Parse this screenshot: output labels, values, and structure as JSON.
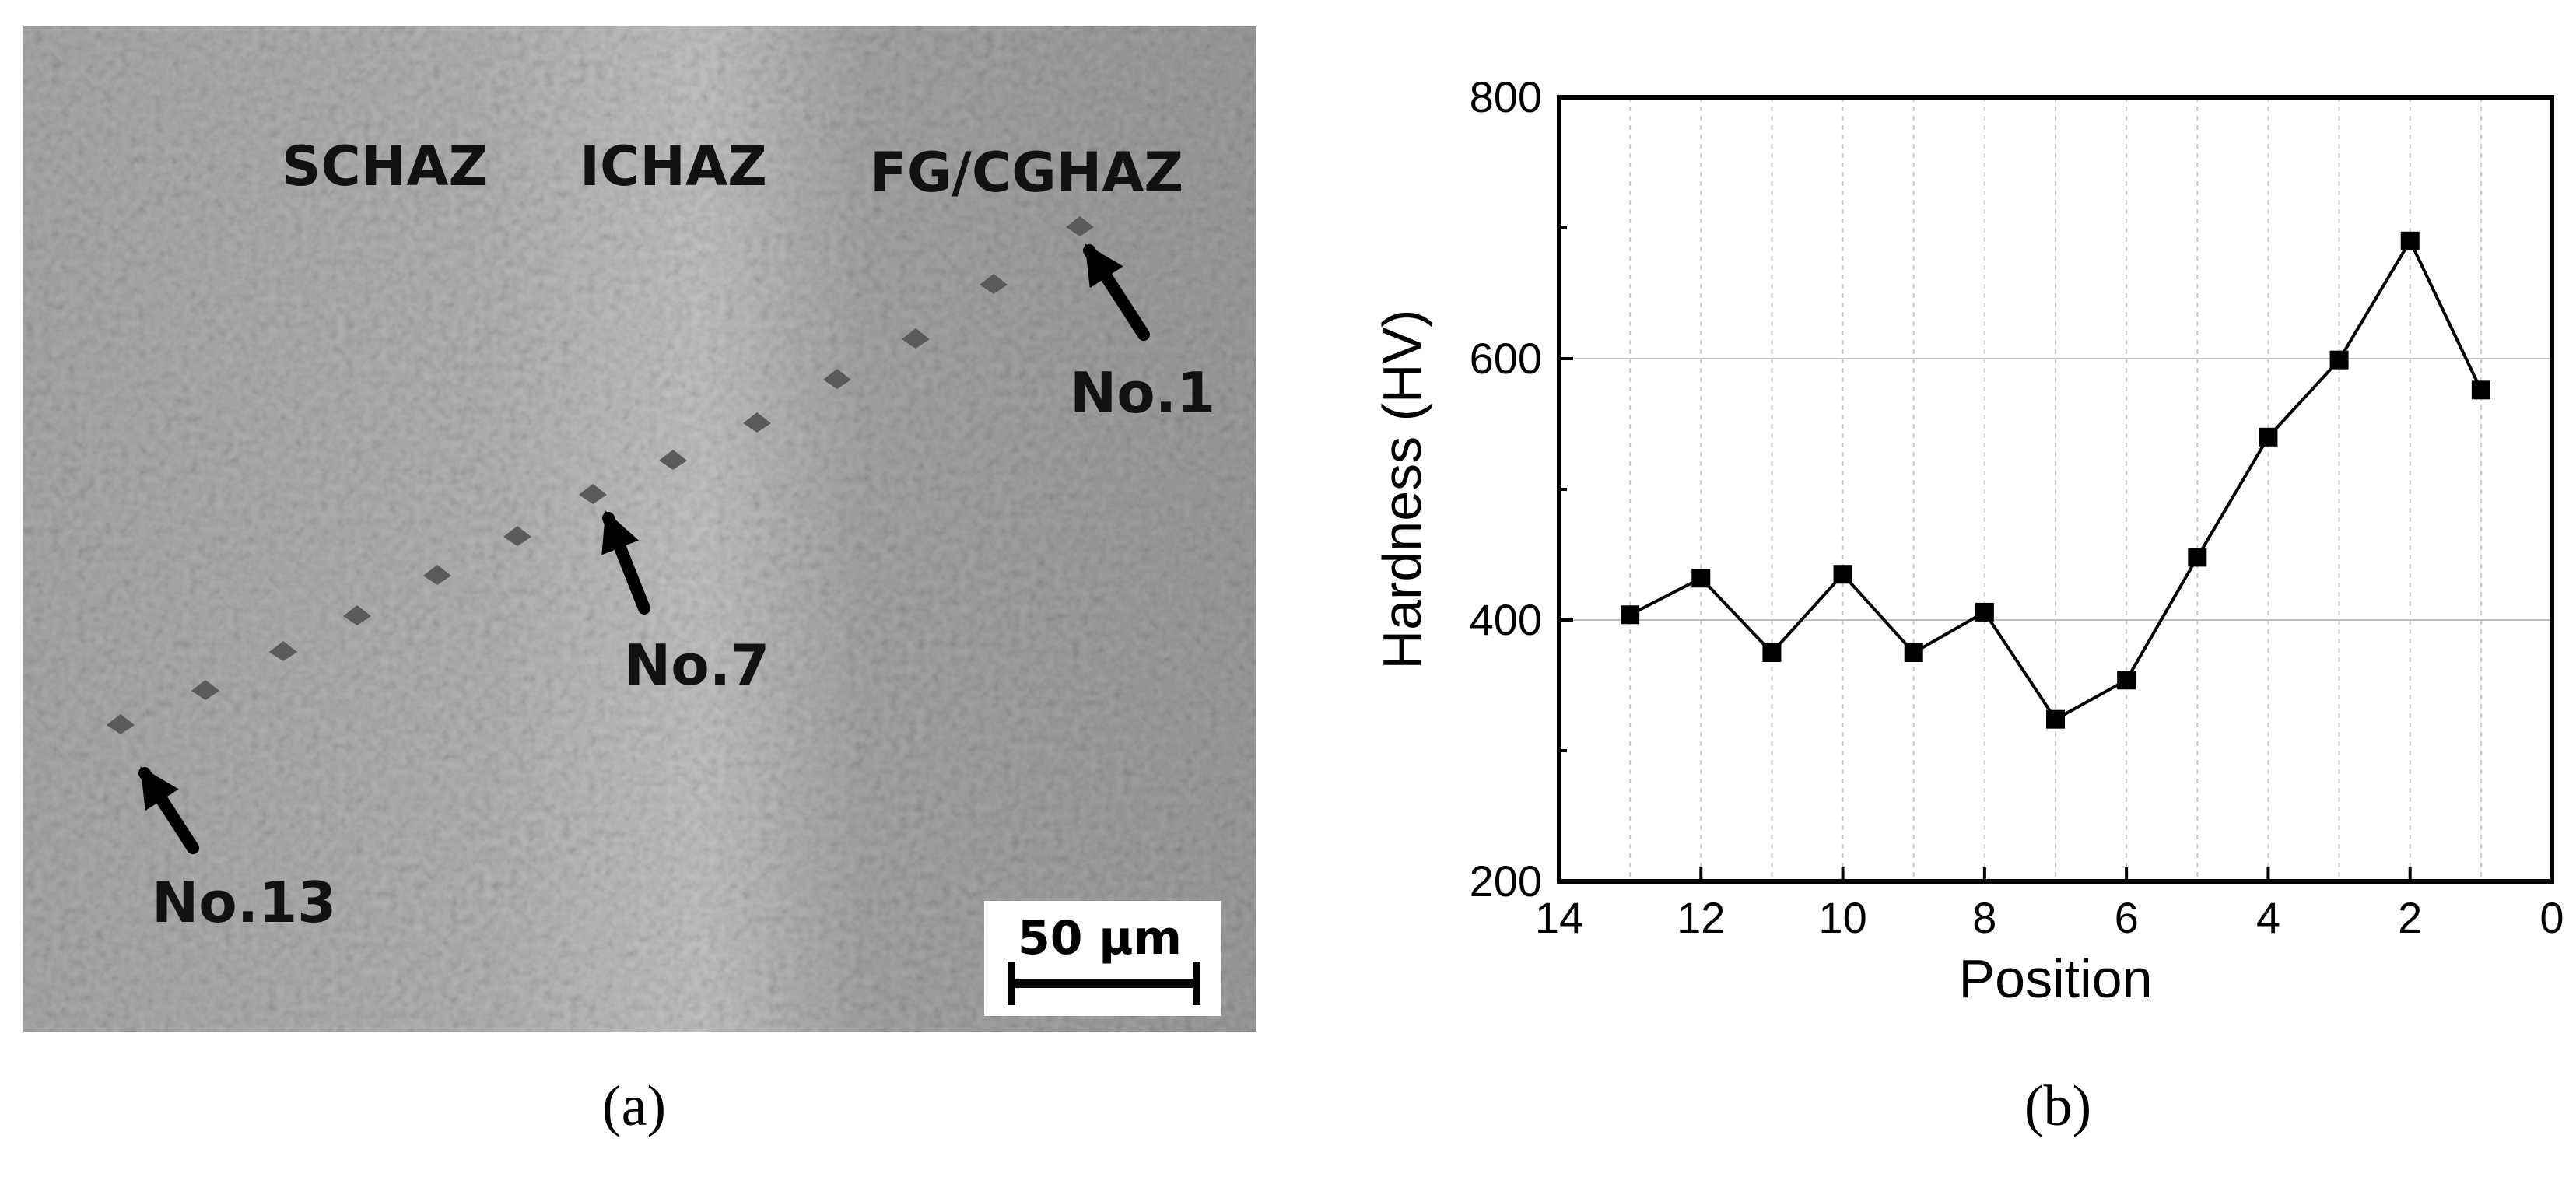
{
  "panel_a": {
    "zone_labels": [
      "SCHAZ",
      "ICHAZ",
      "FG/CGHAZ"
    ],
    "indent_labels": {
      "first": "No.1",
      "middle": "No.7",
      "last": "No.13"
    },
    "scale_bar": {
      "label": "50 μm"
    },
    "caption": "(a)"
  },
  "panel_b": {
    "caption": "(b)"
  },
  "chart_data": {
    "type": "line",
    "title": "",
    "xlabel": "Position",
    "ylabel": "Hardness (HV)",
    "x_reversed": true,
    "xlim": [
      14,
      0
    ],
    "ylim": [
      200,
      800
    ],
    "x_ticks": [
      14,
      12,
      10,
      8,
      6,
      4,
      2,
      0
    ],
    "y_ticks": [
      200,
      400,
      600,
      800
    ],
    "grid": true,
    "marker": "square",
    "series": [
      {
        "x": [
          13,
          12,
          11,
          10,
          9,
          8,
          7,
          6,
          5,
          4,
          3,
          2,
          1
        ],
        "y": [
          404,
          432,
          375,
          435,
          375,
          406,
          324,
          354,
          448,
          540,
          599,
          690,
          576
        ]
      }
    ]
  }
}
